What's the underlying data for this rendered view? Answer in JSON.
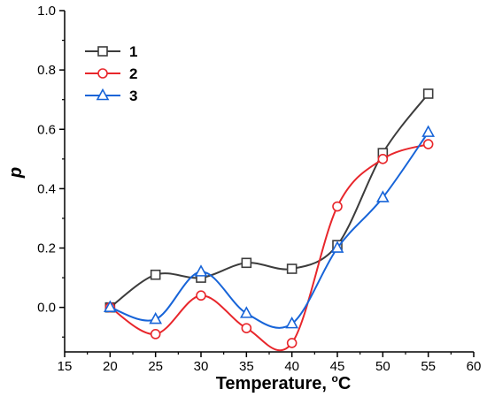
{
  "chart_data": {
    "type": "line",
    "xlabel": "Temperature, ",
    "xlabel_unit_sup": "o",
    "xlabel_unit": "C",
    "ylabel": "p",
    "xlim": [
      15,
      60
    ],
    "ylim": [
      -0.15,
      1.0
    ],
    "x_ticks": [
      15,
      20,
      25,
      30,
      35,
      40,
      45,
      50,
      55,
      60
    ],
    "y_ticks": [
      0.0,
      0.2,
      0.4,
      0.6,
      0.8,
      1.0
    ],
    "x_tick_labels": [
      "15",
      "20",
      "25",
      "30",
      "35",
      "40",
      "45",
      "50",
      "55",
      "60"
    ],
    "y_tick_labels": [
      "0.0",
      "0.2",
      "0.4",
      "0.6",
      "0.8",
      "1.0"
    ],
    "x": [
      20,
      25,
      30,
      35,
      40,
      45,
      50,
      55
    ],
    "series": [
      {
        "name": "1",
        "marker": "square",
        "color": "#3c3c3c",
        "values": [
          0.0,
          0.11,
          0.1,
          0.15,
          0.13,
          0.21,
          0.52,
          0.72
        ]
      },
      {
        "name": "2",
        "marker": "circle",
        "color": "#e8262b",
        "values": [
          0.0,
          -0.09,
          0.04,
          -0.07,
          -0.12,
          0.34,
          0.5,
          0.55
        ]
      },
      {
        "name": "3",
        "marker": "triangle",
        "color": "#1764d8",
        "values": [
          0.0,
          -0.04,
          0.12,
          -0.02,
          -0.055,
          0.2,
          0.37,
          0.59
        ]
      }
    ],
    "grid": false,
    "legend_position": "top-left"
  }
}
